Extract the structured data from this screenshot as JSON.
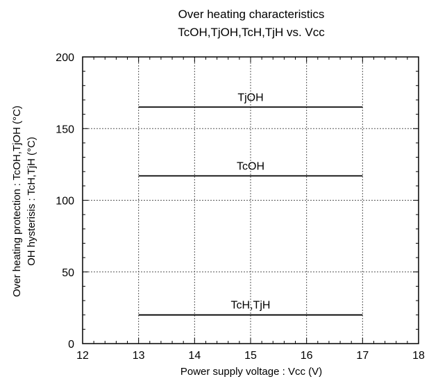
{
  "chart_data": {
    "type": "line",
    "title": "Over heating characteristics",
    "subtitle": "TcOH,TjOH,TcH,TjH vs. Vcc",
    "xlabel": "Power supply voltage : Vcc (V)",
    "ylabel_line1": "Over heating protection : TcOH,TjOH (°C)",
    "ylabel_line2": "OH hysterisis : TcH,TjH (°C)",
    "xlim": [
      12,
      18
    ],
    "ylim": [
      0,
      200
    ],
    "x_ticks": [
      "12",
      "13",
      "14",
      "15",
      "16",
      "17",
      "18"
    ],
    "y_ticks": [
      "0",
      "50",
      "100",
      "150",
      "200"
    ],
    "grid": true,
    "series": [
      {
        "name": "TjOH",
        "x": [
          13,
          17
        ],
        "y": [
          165,
          165
        ]
      },
      {
        "name": "TcOH",
        "x": [
          13,
          17
        ],
        "y": [
          117,
          117
        ]
      },
      {
        "name": "TcH,TjH",
        "x": [
          13,
          17
        ],
        "y": [
          20,
          20
        ]
      }
    ]
  }
}
